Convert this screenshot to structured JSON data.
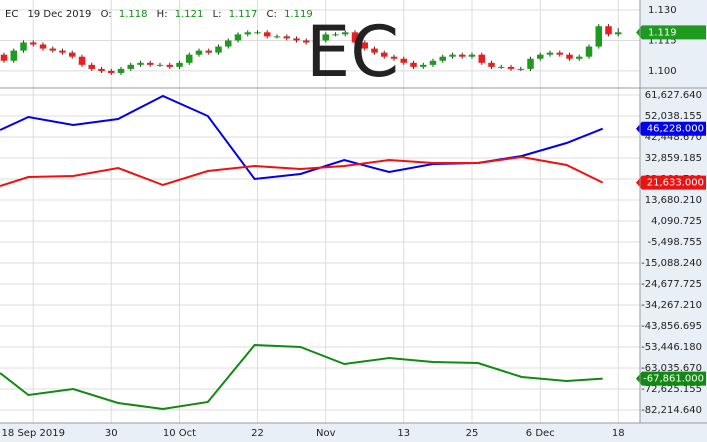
{
  "chart_data": [
    {
      "type": "candlestick",
      "symbol": "EC",
      "date": "19 Dec 2019",
      "ohlc_labels": [
        "O:",
        "H:",
        "L:",
        "C:"
      ],
      "open": [
        1.108,
        1.105,
        1.11,
        1.114,
        1.113,
        1.111,
        1.11,
        1.109,
        1.107,
        1.103,
        1.101,
        1.1,
        1.099,
        1.101,
        1.103,
        1.104,
        1.103,
        1.103,
        1.102,
        1.104,
        1.108,
        1.11,
        1.109,
        1.112,
        1.115,
        1.118,
        1.119,
        1.119,
        1.117,
        1.117,
        1.116,
        1.115,
        1.114,
        1.115,
        1.118,
        1.118,
        1.119,
        1.114,
        1.111,
        1.109,
        1.107,
        1.106,
        1.104,
        1.102,
        1.103,
        1.105,
        1.107,
        1.108,
        1.107,
        1.108,
        1.104,
        1.102,
        1.102,
        1.101,
        1.101,
        1.106,
        1.108,
        1.109,
        1.108,
        1.106,
        1.107,
        1.112,
        1.122,
        1.118
      ],
      "high": [
        1.109,
        1.111,
        1.115,
        1.115,
        1.114,
        1.112,
        1.111,
        1.11,
        1.108,
        1.104,
        1.102,
        1.101,
        1.102,
        1.104,
        1.105,
        1.105,
        1.104,
        1.104,
        1.105,
        1.109,
        1.111,
        1.111,
        1.113,
        1.116,
        1.119,
        1.12,
        1.12,
        1.12,
        1.118,
        1.118,
        1.117,
        1.116,
        1.116,
        1.119,
        1.119,
        1.12,
        1.12,
        1.115,
        1.112,
        1.11,
        1.108,
        1.107,
        1.105,
        1.104,
        1.106,
        1.108,
        1.109,
        1.109,
        1.109,
        1.109,
        1.105,
        1.103,
        1.103,
        1.102,
        1.107,
        1.109,
        1.11,
        1.11,
        1.109,
        1.108,
        1.113,
        1.123,
        1.123,
        1.121
      ],
      "low": [
        1.104,
        1.104,
        1.109,
        1.112,
        1.11,
        1.109,
        1.108,
        1.106,
        1.102,
        1.1,
        1.099,
        1.098,
        1.098,
        1.1,
        1.102,
        1.102,
        1.102,
        1.101,
        1.101,
        1.103,
        1.107,
        1.108,
        1.108,
        1.111,
        1.114,
        1.117,
        1.118,
        1.116,
        1.116,
        1.115,
        1.114,
        1.113,
        1.113,
        1.114,
        1.117,
        1.117,
        1.113,
        1.11,
        1.108,
        1.106,
        1.105,
        1.103,
        1.101,
        1.101,
        1.102,
        1.104,
        1.106,
        1.106,
        1.106,
        1.103,
        1.101,
        1.101,
        1.1,
        1.1,
        1.1,
        1.105,
        1.107,
        1.107,
        1.105,
        1.105,
        1.106,
        1.111,
        1.117,
        1.117
      ],
      "close": [
        1.105,
        1.11,
        1.114,
        1.113,
        1.111,
        1.11,
        1.109,
        1.107,
        1.103,
        1.101,
        1.1,
        1.099,
        1.101,
        1.103,
        1.104,
        1.103,
        1.103,
        1.102,
        1.104,
        1.108,
        1.11,
        1.109,
        1.112,
        1.115,
        1.118,
        1.119,
        1.119,
        1.117,
        1.117,
        1.116,
        1.115,
        1.114,
        1.115,
        1.118,
        1.118,
        1.119,
        1.114,
        1.111,
        1.109,
        1.107,
        1.106,
        1.104,
        1.102,
        1.103,
        1.105,
        1.107,
        1.108,
        1.107,
        1.108,
        1.104,
        1.102,
        1.102,
        1.101,
        1.101,
        1.106,
        1.108,
        1.109,
        1.108,
        1.106,
        1.107,
        1.112,
        1.122,
        1.118,
        1.119
      ],
      "up_color": "#1e9a1e",
      "down_color": "#ee1c1c",
      "xlim": [
        -0.41,
        65.23
      ],
      "ylim": [
        1.0916,
        1.1349
      ],
      "yticks": [
        {
          "value": 1.13,
          "label": "1.130"
        },
        {
          "value": 1.115,
          "label": "1.115"
        },
        {
          "value": 1.1,
          "label": "1.100"
        }
      ]
    },
    {
      "type": "line",
      "x": [
        -0.4,
        2.5,
        7.1,
        11.7,
        16.3,
        20.9,
        25.7,
        30.4,
        34.9,
        39.5,
        44,
        48.6,
        53.1,
        57.7,
        61.4
      ],
      "series": [
        {
          "color": "#0000ee",
          "values": [
            45645,
            51582,
            47928,
            50668,
            61171,
            52038,
            23270,
            25553,
            31946,
            26466,
            30119,
            30576,
            33772,
            39709,
            46228
          ],
          "value_labels": [
            null,
            null,
            null,
            null,
            null,
            null,
            null,
            null,
            null,
            null,
            null,
            null,
            null,
            null,
            "46,228.000"
          ]
        },
        {
          "color": "#ee1111",
          "values": [
            20073,
            24183,
            24640,
            28293,
            20530,
            26923,
            29206,
            27836,
            29206,
            31946,
            30576,
            30576,
            33316,
            29663,
            21633
          ],
          "value_labels": [
            null,
            null,
            null,
            null,
            null,
            null,
            null,
            null,
            null,
            null,
            null,
            null,
            null,
            null,
            "21,633.000"
          ]
        },
        {
          "color": "#108a10",
          "values": [
            -65322,
            -75368,
            -72628,
            -79021,
            -81761,
            -78565,
            -52536,
            -53450,
            -61213,
            -58473,
            -60299,
            -60756,
            -67149,
            -68975,
            -67861
          ],
          "value_labels": [
            null,
            null,
            null,
            null,
            null,
            null,
            null,
            null,
            null,
            null,
            null,
            null,
            null,
            null,
            "-67,861.000"
          ]
        }
      ],
      "xlim": [
        -0.41,
        65.23
      ],
      "ylim": [
        -88150,
        64824
      ],
      "grid": true,
      "xticks": [
        {
          "value": 3,
          "label": "18 Sep 2019"
        },
        {
          "value": 11,
          "label": "30"
        },
        {
          "value": 18,
          "label": "10 Oct"
        },
        {
          "value": 26,
          "label": "22"
        },
        {
          "value": 33,
          "label": "Nov"
        },
        {
          "value": 41,
          "label": "13"
        },
        {
          "value": 48,
          "label": "25"
        },
        {
          "value": 55,
          "label": "6 Dec"
        },
        {
          "value": 63,
          "label": "18"
        }
      ],
      "yticks": [
        {
          "value": 61627.64,
          "label": "61,627.640"
        },
        {
          "value": 52038.155,
          "label": "52,038.155"
        },
        {
          "value": 42448.67,
          "label": "42,448.670"
        },
        {
          "value": 32859.185,
          "label": "32,859.185"
        },
        {
          "value": 23269.7,
          "label": "23,269.700"
        },
        {
          "value": 13680.21,
          "label": "13,680.210"
        },
        {
          "value": 4090.725,
          "label": "4,090.725"
        },
        {
          "value": -5498.755,
          "label": "-5,498.755"
        },
        {
          "value": -15088.24,
          "label": "-15,088.240"
        },
        {
          "value": -24677.725,
          "label": "-24,677.725"
        },
        {
          "value": -34267.21,
          "label": "-34,267.210"
        },
        {
          "value": -43856.695,
          "label": "-43,856.695"
        },
        {
          "value": -53446.18,
          "label": "-53,446.180"
        },
        {
          "value": -63035.67,
          "label": "-63,035.670"
        },
        {
          "value": -72625.155,
          "label": "-72,625.155"
        },
        {
          "value": -82214.64,
          "label": "-82,214.640"
        }
      ]
    }
  ]
}
